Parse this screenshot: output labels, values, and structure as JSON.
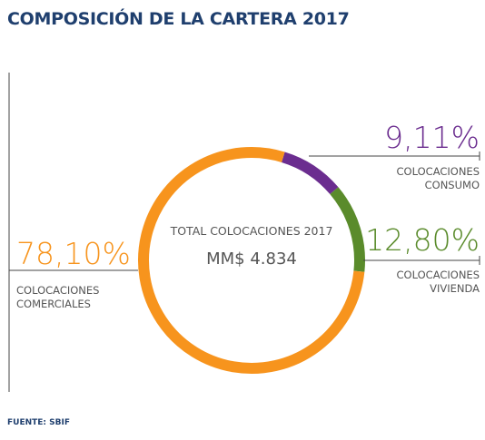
{
  "chart_data": {
    "type": "donut",
    "title": "COMPOSICIÓN DE LA CARTERA 2017",
    "center_title": "TOTAL COLOCACIONES 2017",
    "center_value": "MM$ 4.834",
    "source": "FUENTE: SBIF",
    "categories": [
      "COLOCACIONES CONSUMO",
      "COLOCACIONES VIVIENDA",
      "COLOCACIONES COMERCIALES"
    ],
    "values": [
      9.11,
      12.8,
      78.1
    ],
    "value_labels": [
      "9,11%",
      "12,80%",
      "78,10%"
    ],
    "colors": [
      "#6b2d8f",
      "#5a8b2b",
      "#f7941d"
    ]
  }
}
